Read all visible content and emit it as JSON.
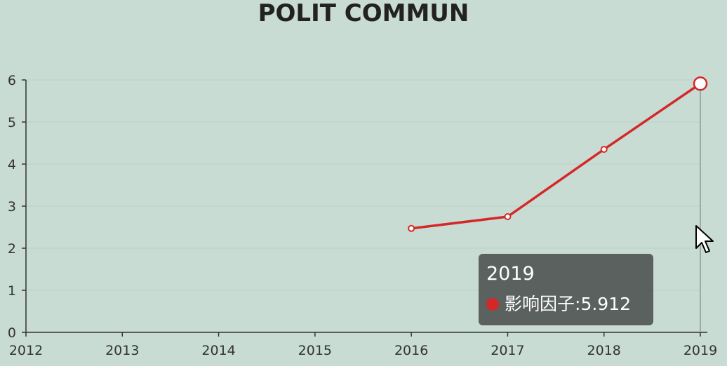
{
  "chart_data": {
    "type": "line",
    "title": "POLIT COMMUN",
    "x": [
      "2012",
      "2013",
      "2014",
      "2015",
      "2016",
      "2017",
      "2018",
      "2019"
    ],
    "series": [
      {
        "name": "影响因子",
        "values": [
          null,
          null,
          null,
          null,
          2.47,
          2.75,
          4.35,
          5.912
        ]
      }
    ],
    "ylim": [
      0,
      6
    ],
    "yticks": [
      "0",
      "1",
      "2",
      "3",
      "4",
      "5",
      "6"
    ],
    "grid": true,
    "line_color": "#d42828"
  },
  "tooltip": {
    "title": "2019",
    "series_name": "影响因子",
    "value": "5.912",
    "separator": ": "
  }
}
